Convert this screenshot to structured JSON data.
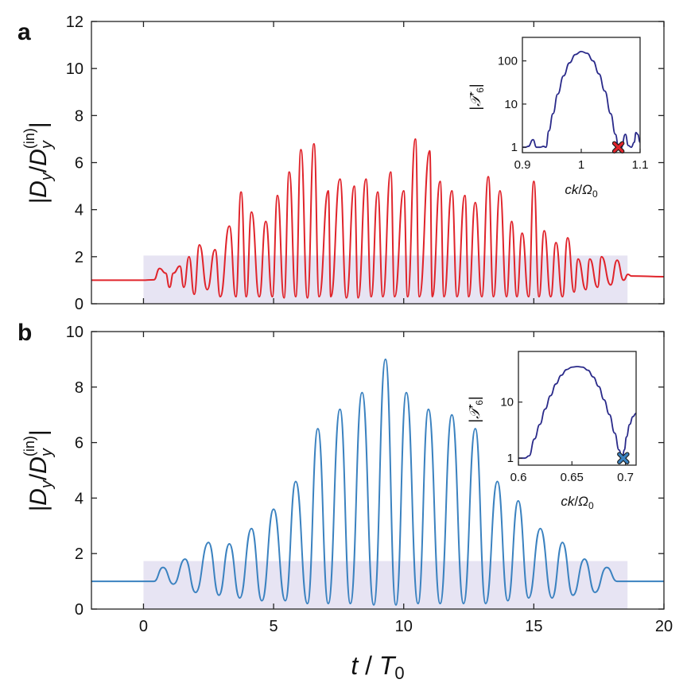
{
  "panel_letters": {
    "a": "a",
    "b": "b"
  },
  "axis_text": {
    "xlabel_t": "t",
    "xlabel_slash": " / ",
    "xlabel_T": "T",
    "xlabel_sub": "0",
    "ylabel_open": "|",
    "ylabel_D": "D",
    "ylabel_sub_y": "y",
    "ylabel_slash": "/",
    "ylabel_sup_in": "(in)",
    "ylabel_close": "|",
    "inset_x_main": "ck",
    "inset_x_slash": "/",
    "inset_x_omega": "Ω",
    "inset_x_sub": "0",
    "inset_y_T": "𝒯",
    "inset_y_prime": "′",
    "inset_y_sub": "6"
  },
  "colors": {
    "series_a": "#e0242b",
    "series_b": "#3b82c0",
    "inset_curve": "#2a2a8a",
    "shade": "#e7e4f3",
    "marker_a": "#e0242b",
    "marker_b": "#3b82c0"
  },
  "chart_data": [
    {
      "panel": "a",
      "type": "line",
      "xlabel": "t / T0",
      "ylabel": "|Dy/Dy(in)|",
      "xlim": [
        -2,
        20
      ],
      "ylim": [
        0,
        12
      ],
      "xticks": [
        0,
        5,
        10,
        15,
        20
      ],
      "yticks": [
        0,
        2,
        4,
        6,
        8,
        10,
        12
      ],
      "xtick_labels": [
        "0",
        "5",
        "10",
        "15",
        "20"
      ],
      "ytick_labels": [
        "0",
        "2",
        "4",
        "6",
        "8",
        "10",
        "12"
      ],
      "shaded_region": {
        "x": [
          0,
          18.6
        ],
        "y": [
          0,
          2.05
        ]
      },
      "series": [
        {
          "color": "#e0242b",
          "x": [
            -2,
            -0.05,
            0.4,
            0.62,
            0.85,
            1.0,
            1.15,
            1.4,
            1.55,
            1.75,
            1.95,
            2.15,
            2.45,
            2.75,
            2.95,
            3.3,
            3.55,
            3.75,
            3.95,
            4.15,
            4.45,
            4.7,
            4.95,
            5.15,
            5.4,
            5.6,
            5.85,
            6.05,
            6.3,
            6.55,
            6.75,
            7.1,
            7.2,
            7.55,
            7.8,
            8.1,
            8.25,
            8.55,
            8.75,
            9.0,
            9.2,
            9.5,
            9.65,
            10.0,
            10.15,
            10.45,
            10.6,
            11.0,
            11.1,
            11.4,
            11.55,
            11.85,
            12.05,
            12.35,
            12.5,
            12.75,
            13.0,
            13.25,
            13.45,
            13.7,
            13.95,
            14.15,
            14.35,
            14.55,
            14.8,
            15.0,
            15.2,
            15.4,
            15.65,
            15.85,
            16.1,
            16.3,
            16.55,
            16.7,
            17.0,
            17.15,
            17.45,
            17.6,
            17.95,
            18.2,
            18.45,
            18.62,
            18.75,
            20
          ],
          "y": [
            1.0,
            1.0,
            1.02,
            1.5,
            1.3,
            0.7,
            1.3,
            1.6,
            0.7,
            2.0,
            0.4,
            2.5,
            0.6,
            2.3,
            0.3,
            3.3,
            0.3,
            4.75,
            0.3,
            3.9,
            0.3,
            3.5,
            0.3,
            4.6,
            0.25,
            5.6,
            0.3,
            6.55,
            0.25,
            6.8,
            0.3,
            4.8,
            0.3,
            5.3,
            0.25,
            5.0,
            0.25,
            5.3,
            0.3,
            4.75,
            0.3,
            5.6,
            0.3,
            4.8,
            0.3,
            7.0,
            0.3,
            6.5,
            0.3,
            5.2,
            0.3,
            4.8,
            0.3,
            4.6,
            0.3,
            4.3,
            0.3,
            5.4,
            0.3,
            4.8,
            0.3,
            3.5,
            0.3,
            3.0,
            0.3,
            5.2,
            0.3,
            3.1,
            0.3,
            2.6,
            0.3,
            2.8,
            0.5,
            1.9,
            0.6,
            1.9,
            0.7,
            2.0,
            0.8,
            1.85,
            1.0,
            1.25,
            1.18,
            1.15
          ]
        }
      ],
      "inset": {
        "xlabel": "ck/Ω0",
        "ylabel": "|𝒯′6|",
        "xlim": [
          0.9,
          1.1
        ],
        "ylim_log": [
          0.75,
          350
        ],
        "xticks": [
          0.9,
          1.0,
          1.1
        ],
        "xtick_labels": [
          "0.9",
          "1",
          "1.1"
        ],
        "yticks": [
          1,
          10,
          100
        ],
        "ytick_labels": [
          "1",
          "10",
          "100"
        ],
        "curve_x": [
          0.9,
          0.905,
          0.91,
          0.918,
          0.924,
          0.93,
          0.936,
          0.94,
          0.945,
          0.952,
          0.96,
          0.97,
          0.98,
          0.99,
          1.0,
          1.01,
          1.02,
          1.03,
          1.04,
          1.05,
          1.058,
          1.063,
          1.068,
          1.075,
          1.08,
          1.085,
          1.09,
          1.093,
          1.096,
          1.1
        ],
        "curve_y": [
          1.0,
          1.0,
          1.05,
          1.5,
          1.0,
          1.0,
          1.05,
          1.0,
          2.4,
          6.0,
          17.0,
          45.0,
          90.0,
          140.0,
          165.0,
          150.0,
          100.0,
          50.0,
          20.0,
          6.0,
          2.0,
          1.1,
          0.98,
          2.0,
          1.1,
          1.0,
          1.3,
          2.2,
          2.0,
          1.3
        ],
        "marker": {
          "x": 1.063,
          "y": 1.0,
          "shape": "x"
        }
      }
    },
    {
      "panel": "b",
      "type": "line",
      "xlabel": "t / T0",
      "ylabel": "|Dy/Dy(in)|",
      "xlim": [
        -2,
        20
      ],
      "ylim": [
        0,
        10
      ],
      "xticks": [
        0,
        5,
        10,
        15,
        20
      ],
      "yticks": [
        0,
        2,
        4,
        6,
        8,
        10
      ],
      "xtick_labels": [
        "0",
        "5",
        "10",
        "15",
        "20"
      ],
      "ytick_labels": [
        "0",
        "2",
        "4",
        "6",
        "8",
        "10"
      ],
      "shaded_region": {
        "x": [
          0,
          18.6
        ],
        "y": [
          0,
          1.73
        ]
      },
      "series": [
        {
          "color": "#3b82c0",
          "x": [
            -2,
            0.4,
            0.75,
            1.15,
            1.6,
            2.0,
            2.5,
            2.9,
            3.3,
            3.7,
            4.15,
            4.55,
            5.0,
            5.45,
            5.85,
            6.3,
            6.7,
            7.1,
            7.55,
            7.95,
            8.4,
            8.85,
            9.3,
            9.7,
            10.1,
            10.55,
            10.95,
            11.4,
            11.85,
            12.3,
            12.75,
            13.15,
            13.6,
            14.0,
            14.4,
            14.8,
            15.25,
            15.7,
            16.1,
            16.5,
            16.95,
            17.35,
            17.8,
            18.2,
            18.6,
            20
          ],
          "y": [
            1.0,
            1.0,
            1.5,
            0.9,
            1.8,
            0.6,
            2.4,
            0.5,
            2.35,
            0.4,
            2.9,
            0.3,
            3.6,
            0.3,
            4.6,
            0.2,
            6.5,
            0.2,
            7.2,
            0.2,
            7.8,
            0.15,
            9.0,
            0.15,
            7.8,
            0.2,
            7.2,
            0.2,
            7.0,
            0.2,
            6.5,
            0.2,
            4.6,
            0.3,
            3.9,
            0.4,
            2.9,
            0.4,
            2.4,
            0.5,
            1.8,
            0.6,
            1.5,
            1.0,
            1.0,
            1.0
          ]
        }
      ],
      "inset": {
        "xlabel": "ck/Ω0",
        "ylabel": "|𝒯′6|",
        "xlim": [
          0.6,
          0.71
        ],
        "ylim_log": [
          0.75,
          80
        ],
        "xticks": [
          0.6,
          0.65,
          0.7
        ],
        "xtick_labels": [
          "0.6",
          "0.65",
          "0.7"
        ],
        "yticks": [
          1,
          10
        ],
        "ytick_labels": [
          "1",
          "10"
        ],
        "curve_x": [
          0.6,
          0.606,
          0.61,
          0.615,
          0.62,
          0.625,
          0.63,
          0.635,
          0.64,
          0.645,
          0.65,
          0.655,
          0.66,
          0.665,
          0.67,
          0.675,
          0.68,
          0.685,
          0.69,
          0.694,
          0.697,
          0.699,
          0.701,
          0.704,
          0.707,
          0.71
        ],
        "curve_y": [
          1.0,
          1.0,
          1.1,
          2.2,
          4.0,
          7.5,
          13.0,
          21.0,
          30.0,
          38.0,
          42.0,
          43.0,
          42.0,
          37.0,
          28.0,
          19.0,
          11.0,
          6.0,
          2.8,
          1.4,
          0.95,
          1.4,
          2.4,
          4.0,
          5.5,
          6.3
        ],
        "marker": {
          "x": 0.698,
          "y": 1.0,
          "shape": "x"
        }
      }
    }
  ]
}
